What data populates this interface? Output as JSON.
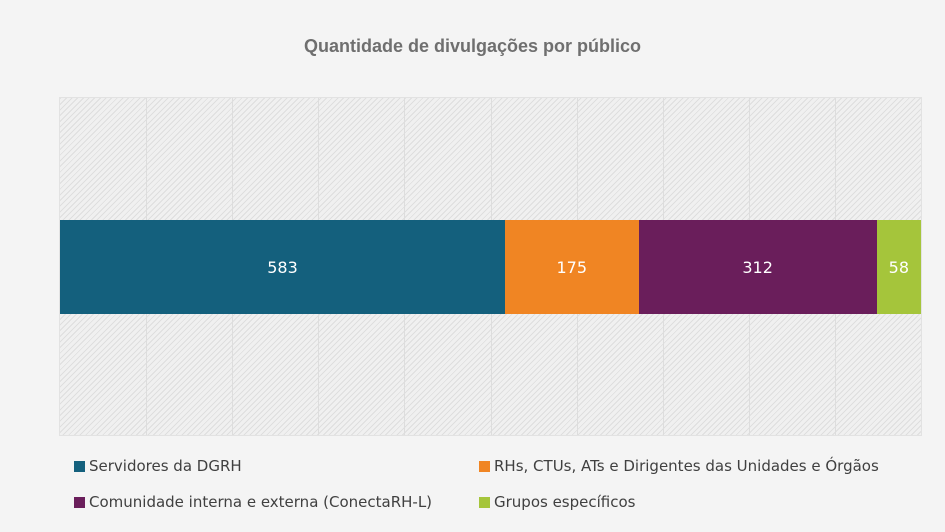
{
  "chart_data": {
    "type": "bar",
    "orientation": "horizontal",
    "stacked": true,
    "title": "Quantidade de divulgações por público",
    "categories": [
      ""
    ],
    "series": [
      {
        "name": "Servidores da DGRH",
        "values": [
          583
        ],
        "color": "#14607d"
      },
      {
        "name": "RHs, CTUs, ATs e Dirigentes das Unidades e Órgãos",
        "values": [
          175
        ],
        "color": "#f08523"
      },
      {
        "name": "Comunidade interna e externa (ConectaRH-L)",
        "values": [
          312
        ],
        "color": "#6a1e5b"
      },
      {
        "name": "Grupos específicos",
        "values": [
          58
        ],
        "color": "#a5c53b"
      }
    ],
    "xlim": [
      0,
      1128
    ],
    "grid": true,
    "legend_position": "bottom",
    "data_labels": true
  }
}
